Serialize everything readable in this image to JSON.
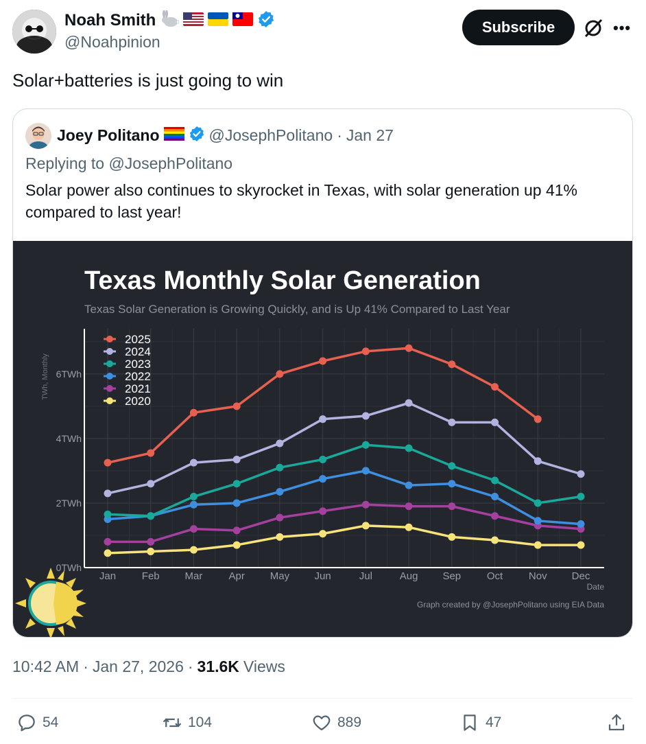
{
  "author": {
    "display_name": "Noah Smith",
    "handle": "@Noahpinion",
    "badges": [
      "rabbit-emoji",
      "us-flag",
      "ukraine-flag",
      "taiwan-flag",
      "verified-icon"
    ]
  },
  "header": {
    "subscribe_label": "Subscribe",
    "icons": [
      "grok-icon",
      "more-icon"
    ]
  },
  "tweet": {
    "text": "Solar+batteries is just going to win"
  },
  "quote": {
    "display_name": "Joey Politano",
    "handle": "@JosephPolitano",
    "separator": "·",
    "date": "Jan 27",
    "replying_to": "Replying to @JosephPolitano",
    "text": "Solar power also continues to skyrocket in Texas, with solar generation up 41% compared to last year!"
  },
  "chart_data": {
    "type": "line",
    "title": "Texas Monthly Solar Generation",
    "subtitle": "Texas Solar Generation is Growing Quickly, and is Up 41% Compared to Last Year",
    "ylabel": "TWh, Monthly",
    "xlabel": "Date",
    "caption": "Graph created by @JosephPolitano using EIA Data",
    "categories": [
      "Jan",
      "Feb",
      "Mar",
      "Apr",
      "May",
      "Jun",
      "Jul",
      "Aug",
      "Sep",
      "Oct",
      "Nov",
      "Dec"
    ],
    "yticks": [
      "0TWh",
      "2TWh",
      "4TWh",
      "6TWh"
    ],
    "ylim": [
      0,
      7.4
    ],
    "legend_position": "top-left",
    "grid": true,
    "series": [
      {
        "name": "2025",
        "color": "#e8604f",
        "values": [
          3.25,
          3.55,
          4.8,
          5.0,
          6.0,
          6.4,
          6.7,
          6.8,
          6.3,
          5.6,
          4.6,
          null
        ]
      },
      {
        "name": "2024",
        "color": "#b3b3e0",
        "values": [
          2.3,
          2.6,
          3.25,
          3.35,
          3.85,
          4.6,
          4.7,
          5.1,
          4.5,
          4.5,
          3.3,
          2.9
        ]
      },
      {
        "name": "2023",
        "color": "#19a89a",
        "values": [
          1.65,
          1.6,
          2.2,
          2.6,
          3.1,
          3.35,
          3.8,
          3.7,
          3.15,
          2.7,
          2.0,
          2.2
        ]
      },
      {
        "name": "2022",
        "color": "#3f8fe0",
        "values": [
          1.5,
          1.6,
          1.95,
          2.0,
          2.35,
          2.75,
          3.0,
          2.55,
          2.6,
          2.2,
          1.45,
          1.35
        ]
      },
      {
        "name": "2021",
        "color": "#a4409d",
        "values": [
          0.8,
          0.8,
          1.2,
          1.15,
          1.55,
          1.75,
          1.95,
          1.9,
          1.9,
          1.6,
          1.3,
          1.2
        ]
      },
      {
        "name": "2020",
        "color": "#f7e37a",
        "values": [
          0.45,
          0.5,
          0.55,
          0.7,
          0.95,
          1.05,
          1.3,
          1.25,
          0.95,
          0.85,
          0.7,
          0.7
        ]
      }
    ]
  },
  "meta": {
    "time": "10:42 AM",
    "dot": "·",
    "date": "Jan 27, 2026",
    "views_count": "31.6K",
    "views_label": "Views"
  },
  "actions": {
    "replies": "54",
    "reposts": "104",
    "likes": "889",
    "bookmarks": "47"
  }
}
